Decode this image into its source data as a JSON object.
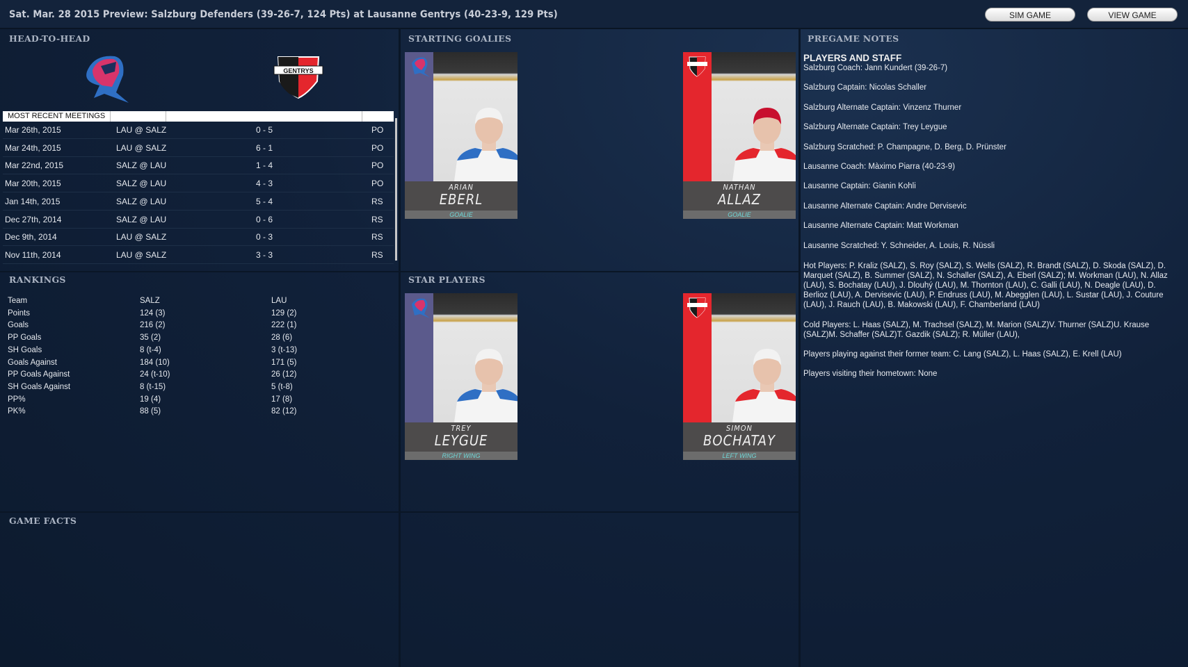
{
  "header": {
    "title": "Sat. Mar. 28 2015 Preview: Salzburg Defenders (39-26-7, 124 Pts) at Lausanne Gentrys (40-23-9, 129 Pts)",
    "sim_game": "SIM GAME",
    "view_game": "VIEW GAME"
  },
  "sections": {
    "head_to_head": "HEAD-TO-HEAD",
    "rankings": "RANKINGS",
    "game_facts": "GAME FACTS",
    "starting_goalies": "STARTING GOALIES",
    "star_players": "STAR PLAYERS",
    "pregame_notes": "PREGAME NOTES"
  },
  "colors": {
    "salzburg": "#5b5a8c",
    "lausanne": "#e4262d",
    "position_text": "#6fd6d6"
  },
  "logos": {
    "home_logo_text": "GENTRYS"
  },
  "meetings": {
    "header": "MOST RECENT MEETINGS",
    "rows": [
      [
        "Mar 26th, 2015",
        "LAU @ SALZ",
        "0 - 5",
        "PO"
      ],
      [
        "Mar 24th, 2015",
        "LAU @ SALZ",
        "6 - 1",
        "PO"
      ],
      [
        "Mar 22nd, 2015",
        "SALZ @ LAU",
        "1 - 4",
        "PO"
      ],
      [
        "Mar 20th, 2015",
        "SALZ @ LAU",
        "4 - 3",
        "PO"
      ],
      [
        "Jan 14th, 2015",
        "SALZ @ LAU",
        "5 - 4",
        "RS"
      ],
      [
        "Dec 27th, 2014",
        "SALZ @ LAU",
        "0 - 6",
        "RS"
      ],
      [
        "Dec 9th, 2014",
        "LAU @ SALZ",
        "0 - 3",
        "RS"
      ],
      [
        "Nov 11th, 2014",
        "LAU @ SALZ",
        "3 - 3",
        "RS"
      ]
    ]
  },
  "rankings": [
    [
      "Team",
      "SALZ",
      "LAU"
    ],
    [
      "Points",
      "124 (3)",
      "129 (2)"
    ],
    [
      "Goals",
      "216 (2)",
      "222 (1)"
    ],
    [
      "PP Goals",
      "35 (2)",
      "28 (6)"
    ],
    [
      "SH Goals",
      "8 (t-4)",
      "3 (t-13)"
    ],
    [
      "Goals Against",
      "184 (10)",
      "171 (5)"
    ],
    [
      "PP Goals Against",
      "24 (t-10)",
      "26 (12)"
    ],
    [
      "SH Goals Against",
      "8 (t-15)",
      "5 (t-8)"
    ],
    [
      "PP%",
      "19 (4)",
      "17 (8)"
    ],
    [
      "PK%",
      "88 (5)",
      "82 (12)"
    ]
  ],
  "goalies": [
    {
      "first": "ARIAN",
      "last": "EBERL",
      "position": "GOALIE",
      "team": "salzburg"
    },
    {
      "first": "NATHAN",
      "last": "ALLAZ",
      "position": "GOALIE",
      "team": "lausanne"
    }
  ],
  "stars": [
    {
      "first": "TREY",
      "last": "LEYGUE",
      "position": "RIGHT WING",
      "team": "salzburg"
    },
    {
      "first": "SIMON",
      "last": "BOCHATAY",
      "position": "LEFT WING",
      "team": "lausanne"
    }
  ],
  "notes": {
    "heading": "PLAYERS AND STAFF",
    "items": [
      "Salzburg Coach: Jann Kundert (39-26-7)",
      "Salzburg Captain: Nicolas Schaller",
      "Salzburg Alternate Captain: Vinzenz Thurner",
      "Salzburg Alternate Captain: Trey Leygue",
      "Salzburg Scratched: P. Champagne, D. Berg, D. Prünster",
      "Lausanne Coach: Màximo Piarra (40-23-9)",
      "Lausanne Captain: Gianin Kohli",
      "Lausanne Alternate Captain: Andre Dervisevic",
      "Lausanne Alternate Captain: Matt Workman",
      "Lausanne Scratched: Y. Schneider, A. Louis, R. Nüssli"
    ],
    "hot": "Hot Players: P. Kraliz (SALZ), S. Roy (SALZ), S. Wells (SALZ), R. Brandt (SALZ), D. Skoda (SALZ), D. Marquet (SALZ), B. Summer (SALZ), N. Schaller (SALZ), A. Eberl (SALZ); M. Workman (LAU), N. Allaz (LAU), S. Bochatay (LAU), J. Dlouhý (LAU), M. Thornton (LAU), C. Galli (LAU), N. Deagle (LAU), D. Berlioz (LAU), A. Dervisevic (LAU), P. Endruss (LAU), M. Abegglen (LAU), L. Sustar (LAU), J. Couture (LAU), J. Rauch (LAU), B. Makowski (LAU), F. Chamberland (LAU)",
    "cold": "Cold Players: L. Haas (SALZ), M. Trachsel (SALZ), M. Marion (SALZ)V. Thurner (SALZ)U. Krause (SALZ)M. Schaffer (SALZ)T. Gazdik (SALZ); R. Müller (LAU),",
    "former": "Players playing against their former team: C. Lang (SALZ), L. Haas (SALZ), E. Krell (LAU)",
    "hometown": "Players visiting their hometown: None"
  }
}
